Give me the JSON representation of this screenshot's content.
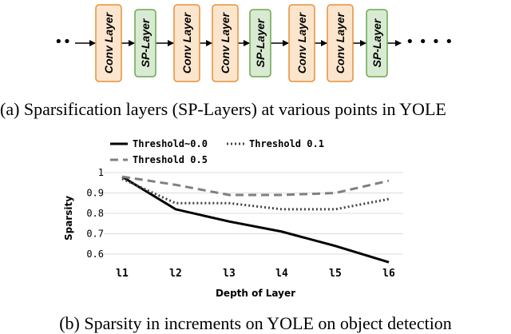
{
  "diagram": {
    "ellipsis_left": "••",
    "ellipsis_right": "• • • •",
    "blocks": [
      {
        "label": "Conv Layer",
        "kind": "conv",
        "fill": "#fce5cd",
        "stroke": "#e69138"
      },
      {
        "label": "SP-Layer",
        "kind": "sp",
        "fill": "#d9ead3",
        "stroke": "#6aa84f"
      },
      {
        "label": "Conv Layer",
        "kind": "conv",
        "fill": "#fce5cd",
        "stroke": "#e69138"
      },
      {
        "label": "Conv Layer",
        "kind": "conv",
        "fill": "#fce5cd",
        "stroke": "#e69138"
      },
      {
        "label": "SP-Layer",
        "kind": "sp",
        "fill": "#d9ead3",
        "stroke": "#6aa84f"
      },
      {
        "label": "Conv Layer",
        "kind": "conv",
        "fill": "#fce5cd",
        "stroke": "#e69138"
      },
      {
        "label": "Conv Layer",
        "kind": "conv",
        "fill": "#fce5cd",
        "stroke": "#e69138"
      },
      {
        "label": "SP-Layer",
        "kind": "sp",
        "fill": "#d9ead3",
        "stroke": "#6aa84f"
      }
    ]
  },
  "captions": {
    "a": "(a) Sparsification layers (SP-Layers) at various points in YOLE",
    "b": "(b) Sparsity in increments on YOLE on object detection"
  },
  "chart_data": {
    "type": "line",
    "xlabel": "Depth of Layer",
    "ylabel": "Sparsity",
    "categories": [
      "l1",
      "l2",
      "l3",
      "l4",
      "l5",
      "l6"
    ],
    "ylim": [
      0.55,
      1.0
    ],
    "yticks": [
      1,
      0.9,
      0.8,
      0.7,
      0.6
    ],
    "ytick_labels": [
      "1",
      "0.9",
      "0.8",
      "0.7",
      "0.6"
    ],
    "grid": true,
    "legend_position": "top",
    "series": [
      {
        "name": "Threshold~0.0",
        "values": [
          0.98,
          0.82,
          0.76,
          0.71,
          0.64,
          0.56
        ],
        "color": "#000000",
        "style": "solid"
      },
      {
        "name": "Threshold 0.1",
        "values": [
          0.97,
          0.85,
          0.85,
          0.82,
          0.82,
          0.87
        ],
        "color": "#444444",
        "style": "dotted"
      },
      {
        "name": "Threshold 0.5",
        "values": [
          0.98,
          0.94,
          0.89,
          0.89,
          0.9,
          0.96
        ],
        "color": "#808080",
        "style": "dashed"
      }
    ]
  }
}
